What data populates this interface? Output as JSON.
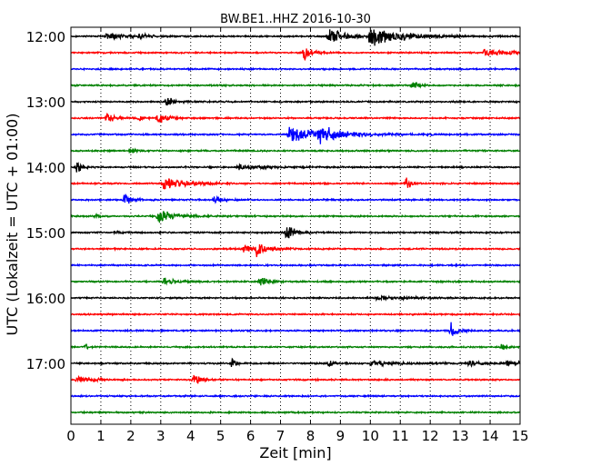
{
  "chart_data": {
    "type": "line",
    "title": "BW.BE1..HHZ 2016-10-30",
    "xlabel": "Zeit  [min]",
    "ylabel": "UTC (Lokalzeit = UTC + 01:00)",
    "xlim": [
      0,
      15
    ],
    "x_ticks": [
      0,
      1,
      2,
      3,
      4,
      5,
      6,
      7,
      8,
      9,
      10,
      11,
      12,
      13,
      14,
      15
    ],
    "x_tick_labels": [
      "0",
      "1",
      "2",
      "3",
      "4",
      "5",
      "6",
      "7",
      "8",
      "9",
      "10",
      "11",
      "12",
      "13",
      "14",
      "15"
    ],
    "y_tick_labels": [
      "12:00",
      "13:00",
      "14:00",
      "15:00",
      "16:00",
      "17:00"
    ],
    "y_tick_rows": [
      0,
      4,
      8,
      12,
      16,
      20
    ],
    "grid": "vertical dotted",
    "trace_colors": [
      "#000000",
      "#ff0000",
      "#0000ff",
      "#008000"
    ],
    "series": [
      {
        "start": "12:00",
        "events": [
          {
            "t": 1.2,
            "a": 4,
            "d": 1.2
          },
          {
            "t": 2.3,
            "a": 3,
            "d": 0.6
          },
          {
            "t": 8.6,
            "a": 10,
            "d": 1.2
          },
          {
            "t": 10.0,
            "a": 14,
            "d": 2.0
          }
        ]
      },
      {
        "start": "12:15",
        "events": [
          {
            "t": 7.8,
            "a": 9,
            "d": 0.6
          },
          {
            "t": 13.8,
            "a": 4,
            "d": 1.8
          }
        ]
      },
      {
        "start": "12:30",
        "events": []
      },
      {
        "start": "12:45",
        "events": [
          {
            "t": 11.4,
            "a": 9,
            "d": 0.3
          }
        ]
      },
      {
        "start": "13:00",
        "events": [
          {
            "t": 3.2,
            "a": 7,
            "d": 0.5
          }
        ]
      },
      {
        "start": "13:15",
        "events": [
          {
            "t": 1.2,
            "a": 6,
            "d": 0.6
          },
          {
            "t": 2.3,
            "a": 4,
            "d": 0.4
          },
          {
            "t": 2.9,
            "a": 9,
            "d": 0.6
          }
        ]
      },
      {
        "start": "13:30",
        "events": [
          {
            "t": 7.3,
            "a": 9,
            "d": 2.8
          },
          {
            "t": 8.3,
            "a": 8,
            "d": 1.2
          }
        ]
      },
      {
        "start": "13:45",
        "events": [
          {
            "t": 2.0,
            "a": 3,
            "d": 0.4
          }
        ]
      },
      {
        "start": "14:00",
        "events": [
          {
            "t": 0.2,
            "a": 8,
            "d": 0.4
          },
          {
            "t": 5.6,
            "a": 3,
            "d": 1.6
          }
        ]
      },
      {
        "start": "14:15",
        "events": [
          {
            "t": 3.1,
            "a": 7,
            "d": 1.6
          },
          {
            "t": 11.2,
            "a": 7,
            "d": 0.4
          }
        ]
      },
      {
        "start": "14:30",
        "events": [
          {
            "t": 1.8,
            "a": 9,
            "d": 0.5
          },
          {
            "t": 4.8,
            "a": 6,
            "d": 0.5
          }
        ]
      },
      {
        "start": "14:45",
        "events": [
          {
            "t": 2.9,
            "a": 8,
            "d": 1.2
          },
          {
            "t": 0.8,
            "a": 2,
            "d": 0.3
          }
        ]
      },
      {
        "start": "15:00",
        "events": [
          {
            "t": 7.2,
            "a": 11,
            "d": 0.6
          },
          {
            "t": 1.5,
            "a": 2,
            "d": 0.3
          }
        ]
      },
      {
        "start": "15:15",
        "events": [
          {
            "t": 5.8,
            "a": 6,
            "d": 0.6
          },
          {
            "t": 6.2,
            "a": 8,
            "d": 0.8
          }
        ]
      },
      {
        "start": "15:30",
        "events": []
      },
      {
        "start": "15:45",
        "events": [
          {
            "t": 3.1,
            "a": 6,
            "d": 0.8
          },
          {
            "t": 6.3,
            "a": 6,
            "d": 0.6
          }
        ]
      },
      {
        "start": "16:00",
        "events": [
          {
            "t": 10.2,
            "a": 2,
            "d": 2.4
          }
        ]
      },
      {
        "start": "16:15",
        "events": []
      },
      {
        "start": "16:30",
        "events": [
          {
            "t": 12.7,
            "a": 10,
            "d": 0.4
          }
        ]
      },
      {
        "start": "16:45",
        "events": [
          {
            "t": 0.5,
            "a": 4,
            "d": 0.2
          },
          {
            "t": 14.4,
            "a": 6,
            "d": 0.3
          }
        ]
      },
      {
        "start": "17:00",
        "events": [
          {
            "t": 5.4,
            "a": 8,
            "d": 0.3
          },
          {
            "t": 8.6,
            "a": 4,
            "d": 0.5
          },
          {
            "t": 10.0,
            "a": 3,
            "d": 2.0
          },
          {
            "t": 13.3,
            "a": 4,
            "d": 0.8
          },
          {
            "t": 14.6,
            "a": 4,
            "d": 0.8
          }
        ]
      },
      {
        "start": "17:15",
        "events": [
          {
            "t": 0.2,
            "a": 4,
            "d": 1.0
          },
          {
            "t": 4.1,
            "a": 6,
            "d": 0.6
          }
        ]
      },
      {
        "start": "17:30",
        "events": []
      },
      {
        "start": "17:45",
        "events": []
      }
    ]
  }
}
